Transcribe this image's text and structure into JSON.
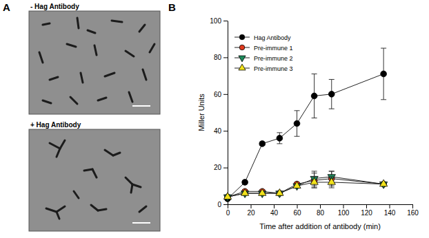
{
  "chart_data": {
    "type": "line",
    "xlabel": "Time after addition of antibody (min)",
    "ylabel": "Miller Units",
    "x": [
      0,
      15,
      30,
      45,
      60,
      75,
      90,
      135
    ],
    "xlim": [
      0,
      160
    ],
    "xticks": [
      0,
      20,
      40,
      60,
      80,
      100,
      120,
      140,
      160
    ],
    "ylim": [
      0,
      100
    ],
    "yticks": [
      0,
      20,
      40,
      60,
      80,
      100
    ],
    "legend": "upper-left",
    "grid": false,
    "series": [
      {
        "name": "Hag Antibody",
        "color": "#000000",
        "marker": "circle",
        "values": [
          3,
          12,
          33,
          36,
          44,
          59,
          60,
          71
        ],
        "errors": [
          0.5,
          1,
          1,
          3,
          7,
          12,
          8,
          14
        ]
      },
      {
        "name": "Pre-immune 1",
        "color": "#e03a1e",
        "marker": "circle",
        "values": [
          4,
          7,
          7,
          6,
          11,
          13,
          14,
          11
        ],
        "errors": [
          0.5,
          1,
          1,
          1,
          1,
          4,
          4,
          1
        ]
      },
      {
        "name": "Pre-immune 2",
        "color": "#1a8a5a",
        "marker": "triangle-down",
        "values": [
          4,
          6,
          6,
          6,
          10,
          14,
          15,
          11
        ],
        "errors": [
          0.5,
          1,
          1,
          1,
          1,
          4,
          3,
          1
        ]
      },
      {
        "name": "Pre-immune 3",
        "color": "#f2e21c",
        "marker": "triangle-up",
        "values": [
          4,
          6,
          6,
          6,
          10,
          12,
          12,
          11
        ],
        "errors": [
          0.5,
          1,
          1,
          1,
          1,
          3,
          3,
          1
        ]
      }
    ]
  },
  "figure": {
    "panel_labels": [
      "A",
      "B"
    ],
    "image_captions": [
      "- Hag Antibody",
      "+ Hag Antibody"
    ]
  }
}
